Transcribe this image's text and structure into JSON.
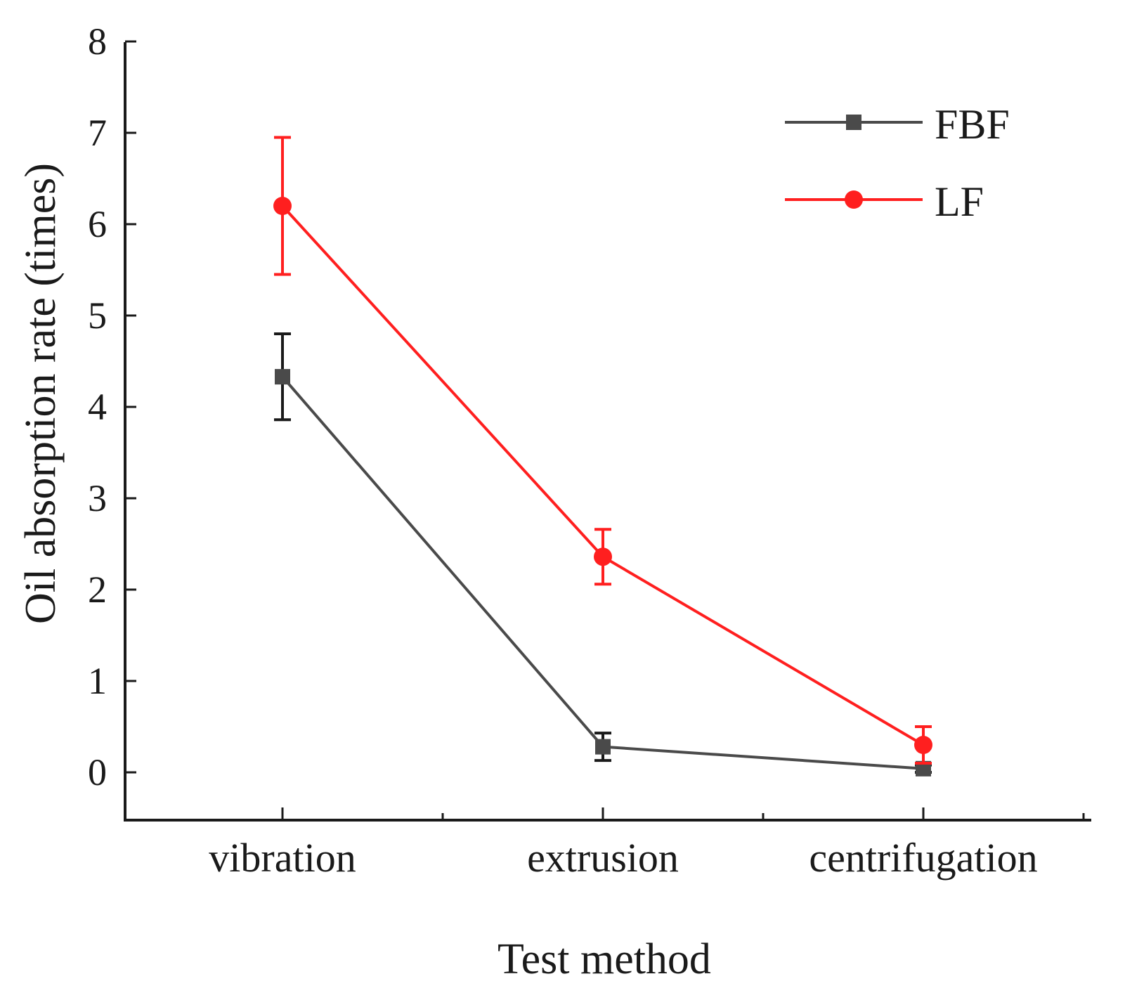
{
  "chart_data": {
    "type": "line",
    "title": "",
    "xlabel": "Test method",
    "ylabel": "Oil absorption rate (times)",
    "categories": [
      "vibration",
      "extrusion",
      "centrifugation"
    ],
    "ylim": [
      -0.5,
      8
    ],
    "yticks": [
      0,
      1,
      2,
      3,
      4,
      5,
      6,
      7,
      8
    ],
    "legend_position": "top-right",
    "series": [
      {
        "name": "FBF",
        "color": "#4a4a4a",
        "errorbar_color": "#1a1a1a",
        "marker": "square",
        "values": [
          4.33,
          0.28,
          0.04
        ],
        "errors": [
          0.47,
          0.15,
          0.04
        ]
      },
      {
        "name": "LF",
        "color": "#ff1f1f",
        "errorbar_color": "#ff1f1f",
        "marker": "circle",
        "values": [
          6.2,
          2.36,
          0.3
        ],
        "errors": [
          0.75,
          0.3,
          0.2
        ]
      }
    ]
  }
}
